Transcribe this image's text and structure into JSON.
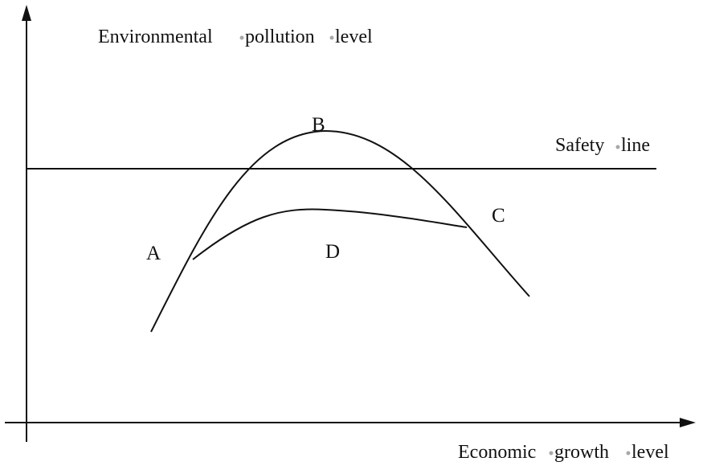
{
  "diagram": {
    "y_axis_label_words": [
      "Environmental",
      "pollution",
      "level"
    ],
    "x_axis_label_words": [
      "Economic",
      "growth",
      "level"
    ],
    "safety_line_words": [
      "Safety",
      "line"
    ],
    "points": {
      "a": "A",
      "b": "B",
      "c": "C",
      "d": "D"
    }
  },
  "colors": {
    "ink": "#111111",
    "word_separator": "#a8a8a8",
    "background": "#ffffff"
  }
}
